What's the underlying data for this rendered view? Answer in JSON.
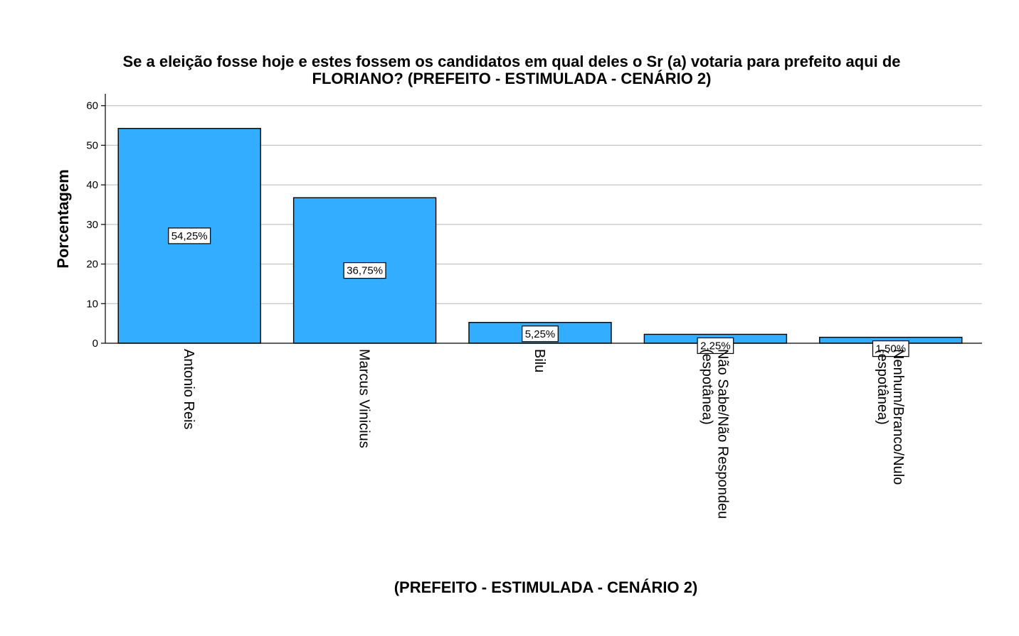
{
  "chart_data": {
    "type": "bar",
    "title": [
      "Se a eleição fosse hoje e estes fossem os candidatos em qual deles o Sr (a) votaria para prefeito aqui de",
      "FLORIANO? (PREFEITO - ESTIMULADA - CENÁRIO 2)"
    ],
    "xlabel": "(PREFEITO - ESTIMULADA - CENÁRIO 2)",
    "ylabel": "Porcentagem",
    "ylim": [
      0,
      63
    ],
    "yticks": [
      0,
      10,
      20,
      30,
      40,
      50,
      60
    ],
    "grid": true,
    "categories": [
      [
        "Antonio Reis"
      ],
      [
        "Marcus Vinicius"
      ],
      [
        "Bilu"
      ],
      [
        "Não Sabe/Não Respondeu",
        "(espotânea)"
      ],
      [
        "Nenhum/Branco/Nulo",
        "(espotânea)"
      ]
    ],
    "values": [
      54.25,
      36.75,
      5.25,
      2.25,
      1.5
    ],
    "data_labels": [
      "54,25%",
      "36,75%",
      "5,25%",
      "2,25%",
      "1,50%"
    ],
    "bar_color": "#33adff"
  }
}
